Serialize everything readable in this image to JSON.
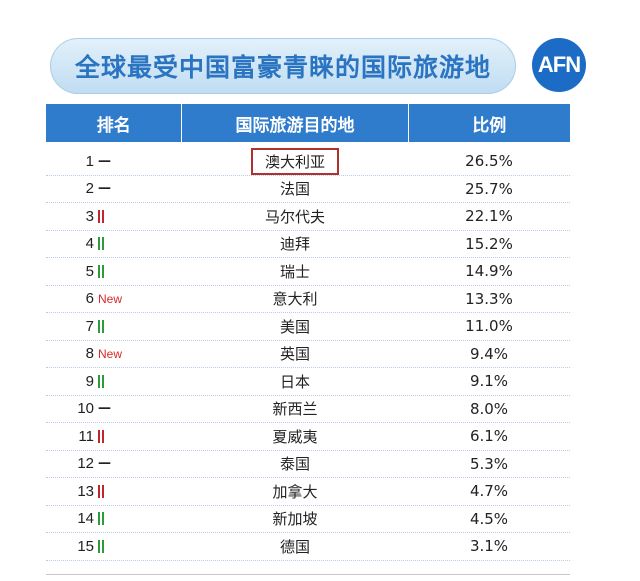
{
  "header": {
    "title": "全球最受中国富豪青睐的国际旅游地",
    "logo": "AFN"
  },
  "table": {
    "headers": [
      "排名",
      "国际旅游目的地",
      "比例"
    ],
    "rows": [
      {
        "rank": "1",
        "change": "same",
        "change_label": "—",
        "destination": "澳大利亚",
        "ratio": "26.5%",
        "highlighted": true
      },
      {
        "rank": "2",
        "change": "same",
        "change_label": "—",
        "destination": "法国",
        "ratio": "25.7%"
      },
      {
        "rank": "3",
        "change": "up",
        "change_label": "",
        "destination": "马尔代夫",
        "ratio": "22.1%"
      },
      {
        "rank": "4",
        "change": "down",
        "change_label": "",
        "destination": "迪拜",
        "ratio": "15.2%"
      },
      {
        "rank": "5",
        "change": "down",
        "change_label": "",
        "destination": "瑞士",
        "ratio": "14.9%"
      },
      {
        "rank": "6",
        "change": "new",
        "change_label": "New",
        "destination": "意大利",
        "ratio": "13.3%"
      },
      {
        "rank": "7",
        "change": "down",
        "change_label": "",
        "destination": "美国",
        "ratio": "11.0%"
      },
      {
        "rank": "8",
        "change": "new",
        "change_label": "New",
        "destination": "英国",
        "ratio": "9.4%"
      },
      {
        "rank": "9",
        "change": "down",
        "change_label": "",
        "destination": "日本",
        "ratio": "9.1%"
      },
      {
        "rank": "10",
        "change": "same",
        "change_label": "—",
        "destination": "新西兰",
        "ratio": "8.0%"
      },
      {
        "rank": "11",
        "change": "up",
        "change_label": "",
        "destination": "夏威夷",
        "ratio": "6.1%"
      },
      {
        "rank": "12",
        "change": "same",
        "change_label": "—",
        "destination": "泰国",
        "ratio": "5.3%"
      },
      {
        "rank": "13",
        "change": "up",
        "change_label": "",
        "destination": "加拿大",
        "ratio": "4.7%"
      },
      {
        "rank": "14",
        "change": "down",
        "change_label": "",
        "destination": "新加坡",
        "ratio": "4.5%"
      },
      {
        "rank": "15",
        "change": "down",
        "change_label": "",
        "destination": "德国",
        "ratio": "3.1%"
      }
    ]
  },
  "colors": {
    "header_bg": "#2f7bcc",
    "title_text": "#2a74c2",
    "up": "#c0262b",
    "down": "#2e9a3c",
    "new": "#d62a2a",
    "highlight_border": "#b1312f"
  }
}
